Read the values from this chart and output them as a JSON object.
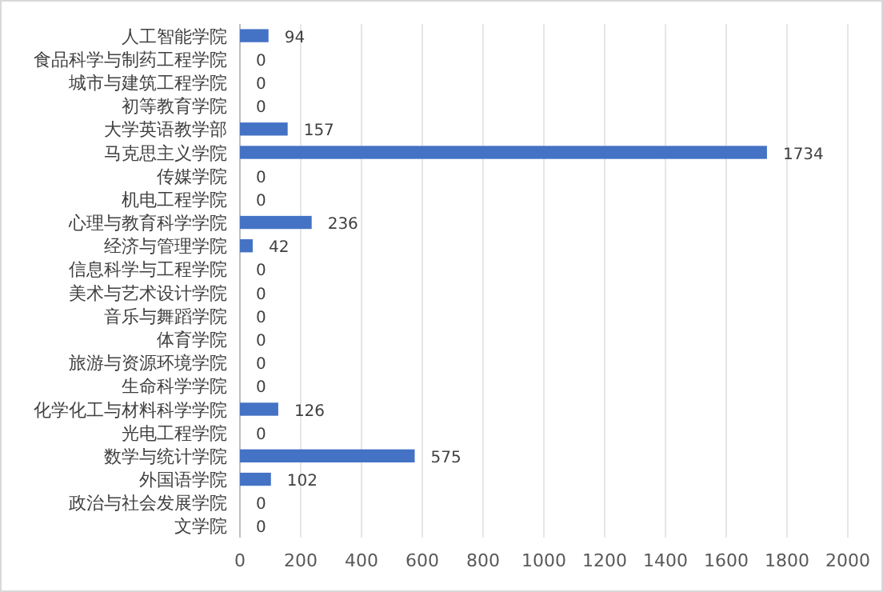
{
  "chart_data": {
    "type": "bar",
    "orientation": "horizontal",
    "categories": [
      "人工智能学院",
      "食品科学与制药工程学院",
      "城市与建筑工程学院",
      "初等教育学院",
      "大学英语教学部",
      "马克思主义学院",
      "传媒学院",
      "机电工程学院",
      "心理与教育科学学院",
      "经济与管理学院",
      "信息科学与工程学院",
      "美术与艺术设计学院",
      "音乐与舞蹈学院",
      "体育学院",
      "旅游与资源环境学院",
      "生命科学学院",
      "化学化工与材料科学学院",
      "光电工程学院",
      "数学与统计学院",
      "外国语学院",
      "政治与社会发展学院",
      "文学院"
    ],
    "values": [
      94,
      0,
      0,
      0,
      157,
      1734,
      0,
      0,
      236,
      42,
      0,
      0,
      0,
      0,
      0,
      0,
      126,
      0,
      575,
      102,
      0,
      0
    ],
    "color": "#4472c4",
    "xlim": [
      0,
      2000
    ],
    "xticks": [
      0,
      200,
      400,
      600,
      800,
      1000,
      1200,
      1400,
      1600,
      1800,
      2000
    ],
    "grid": "x",
    "data_labels": true
  }
}
